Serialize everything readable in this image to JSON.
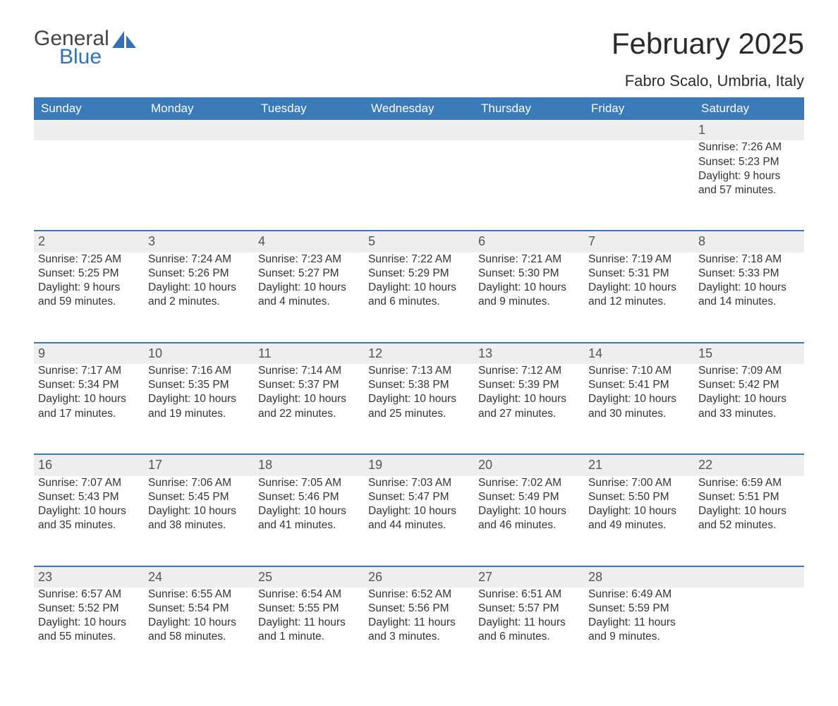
{
  "logo": {
    "general": "General",
    "blue": "Blue"
  },
  "title": "February 2025",
  "location": "Fabro Scalo, Umbria, Italy",
  "colors": {
    "header_bg": "#3a7ab8",
    "header_text": "#ffffff",
    "daynum_bg": "#eeeeee",
    "daynum_border": "#3a7ab8",
    "body_text": "#333333",
    "logo_blue": "#2f72b9"
  },
  "weekdays": [
    "Sunday",
    "Monday",
    "Tuesday",
    "Wednesday",
    "Thursday",
    "Friday",
    "Saturday"
  ],
  "first_weekday_index": 6,
  "days": [
    {
      "n": "1",
      "sunrise": "Sunrise: 7:26 AM",
      "sunset": "Sunset: 5:23 PM",
      "daylight": "Daylight: 9 hours and 57 minutes."
    },
    {
      "n": "2",
      "sunrise": "Sunrise: 7:25 AM",
      "sunset": "Sunset: 5:25 PM",
      "daylight": "Daylight: 9 hours and 59 minutes."
    },
    {
      "n": "3",
      "sunrise": "Sunrise: 7:24 AM",
      "sunset": "Sunset: 5:26 PM",
      "daylight": "Daylight: 10 hours and 2 minutes."
    },
    {
      "n": "4",
      "sunrise": "Sunrise: 7:23 AM",
      "sunset": "Sunset: 5:27 PM",
      "daylight": "Daylight: 10 hours and 4 minutes."
    },
    {
      "n": "5",
      "sunrise": "Sunrise: 7:22 AM",
      "sunset": "Sunset: 5:29 PM",
      "daylight": "Daylight: 10 hours and 6 minutes."
    },
    {
      "n": "6",
      "sunrise": "Sunrise: 7:21 AM",
      "sunset": "Sunset: 5:30 PM",
      "daylight": "Daylight: 10 hours and 9 minutes."
    },
    {
      "n": "7",
      "sunrise": "Sunrise: 7:19 AM",
      "sunset": "Sunset: 5:31 PM",
      "daylight": "Daylight: 10 hours and 12 minutes."
    },
    {
      "n": "8",
      "sunrise": "Sunrise: 7:18 AM",
      "sunset": "Sunset: 5:33 PM",
      "daylight": "Daylight: 10 hours and 14 minutes."
    },
    {
      "n": "9",
      "sunrise": "Sunrise: 7:17 AM",
      "sunset": "Sunset: 5:34 PM",
      "daylight": "Daylight: 10 hours and 17 minutes."
    },
    {
      "n": "10",
      "sunrise": "Sunrise: 7:16 AM",
      "sunset": "Sunset: 5:35 PM",
      "daylight": "Daylight: 10 hours and 19 minutes."
    },
    {
      "n": "11",
      "sunrise": "Sunrise: 7:14 AM",
      "sunset": "Sunset: 5:37 PM",
      "daylight": "Daylight: 10 hours and 22 minutes."
    },
    {
      "n": "12",
      "sunrise": "Sunrise: 7:13 AM",
      "sunset": "Sunset: 5:38 PM",
      "daylight": "Daylight: 10 hours and 25 minutes."
    },
    {
      "n": "13",
      "sunrise": "Sunrise: 7:12 AM",
      "sunset": "Sunset: 5:39 PM",
      "daylight": "Daylight: 10 hours and 27 minutes."
    },
    {
      "n": "14",
      "sunrise": "Sunrise: 7:10 AM",
      "sunset": "Sunset: 5:41 PM",
      "daylight": "Daylight: 10 hours and 30 minutes."
    },
    {
      "n": "15",
      "sunrise": "Sunrise: 7:09 AM",
      "sunset": "Sunset: 5:42 PM",
      "daylight": "Daylight: 10 hours and 33 minutes."
    },
    {
      "n": "16",
      "sunrise": "Sunrise: 7:07 AM",
      "sunset": "Sunset: 5:43 PM",
      "daylight": "Daylight: 10 hours and 35 minutes."
    },
    {
      "n": "17",
      "sunrise": "Sunrise: 7:06 AM",
      "sunset": "Sunset: 5:45 PM",
      "daylight": "Daylight: 10 hours and 38 minutes."
    },
    {
      "n": "18",
      "sunrise": "Sunrise: 7:05 AM",
      "sunset": "Sunset: 5:46 PM",
      "daylight": "Daylight: 10 hours and 41 minutes."
    },
    {
      "n": "19",
      "sunrise": "Sunrise: 7:03 AM",
      "sunset": "Sunset: 5:47 PM",
      "daylight": "Daylight: 10 hours and 44 minutes."
    },
    {
      "n": "20",
      "sunrise": "Sunrise: 7:02 AM",
      "sunset": "Sunset: 5:49 PM",
      "daylight": "Daylight: 10 hours and 46 minutes."
    },
    {
      "n": "21",
      "sunrise": "Sunrise: 7:00 AM",
      "sunset": "Sunset: 5:50 PM",
      "daylight": "Daylight: 10 hours and 49 minutes."
    },
    {
      "n": "22",
      "sunrise": "Sunrise: 6:59 AM",
      "sunset": "Sunset: 5:51 PM",
      "daylight": "Daylight: 10 hours and 52 minutes."
    },
    {
      "n": "23",
      "sunrise": "Sunrise: 6:57 AM",
      "sunset": "Sunset: 5:52 PM",
      "daylight": "Daylight: 10 hours and 55 minutes."
    },
    {
      "n": "24",
      "sunrise": "Sunrise: 6:55 AM",
      "sunset": "Sunset: 5:54 PM",
      "daylight": "Daylight: 10 hours and 58 minutes."
    },
    {
      "n": "25",
      "sunrise": "Sunrise: 6:54 AM",
      "sunset": "Sunset: 5:55 PM",
      "daylight": "Daylight: 11 hours and 1 minute."
    },
    {
      "n": "26",
      "sunrise": "Sunrise: 6:52 AM",
      "sunset": "Sunset: 5:56 PM",
      "daylight": "Daylight: 11 hours and 3 minutes."
    },
    {
      "n": "27",
      "sunrise": "Sunrise: 6:51 AM",
      "sunset": "Sunset: 5:57 PM",
      "daylight": "Daylight: 11 hours and 6 minutes."
    },
    {
      "n": "28",
      "sunrise": "Sunrise: 6:49 AM",
      "sunset": "Sunset: 5:59 PM",
      "daylight": "Daylight: 11 hours and 9 minutes."
    }
  ]
}
